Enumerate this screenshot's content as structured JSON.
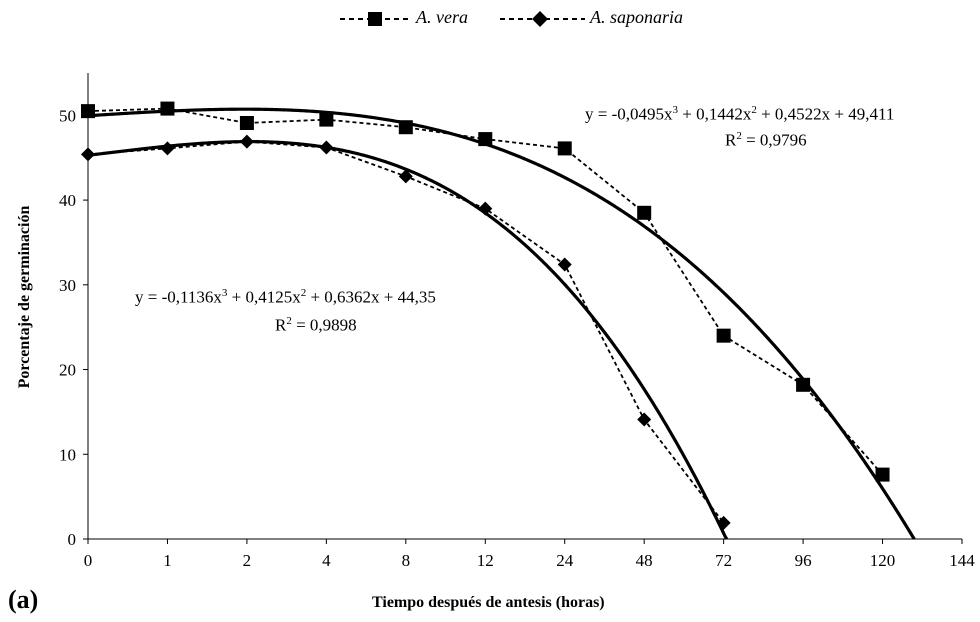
{
  "chart_data": {
    "type": "line",
    "xlabel": "Tiempo después de antesis (horas)",
    "ylabel": "Porcentaje de germinación",
    "panel_label": "(a)",
    "categories": [
      "0",
      "1",
      "2",
      "4",
      "8",
      "12",
      "24",
      "48",
      "72",
      "96",
      "120",
      "144"
    ],
    "ylim": [
      0,
      55
    ],
    "yticks": [
      0,
      10,
      20,
      30,
      40,
      50
    ],
    "grid": false,
    "legend_position": "top-center",
    "series": [
      {
        "name": "A. vera",
        "marker": "square",
        "line_style": "dashed",
        "values": [
          50.5,
          50.8,
          49.1,
          49.5,
          48.6,
          47.2,
          46.1,
          38.5,
          24.0,
          18.2,
          7.6,
          null
        ],
        "fit": {
          "coefficients": [
            -0.0495,
            0.1442,
            0.4522,
            49.411
          ],
          "equation": "y = -0,0495x",
          "equation_rest": " + 0,1442x",
          "equation_rest2": " + 0,4522x + 49,411",
          "r2_label": "R",
          "r2_value": " = 0,9796"
        }
      },
      {
        "name": "A. saponaria",
        "marker": "diamond",
        "line_style": "dashed",
        "values": [
          45.4,
          46.1,
          46.9,
          46.2,
          42.8,
          39.0,
          32.4,
          14.1,
          1.9,
          null,
          null,
          null
        ],
        "fit": {
          "coefficients": [
            -0.1136,
            0.4125,
            0.6362,
            44.35
          ],
          "equation": "y = -0,1136x",
          "equation_rest": " + 0,4125x",
          "equation_rest2": " + 0,6362x + 44,35",
          "r2_label": "R",
          "r2_value": " = 0,9898"
        }
      }
    ]
  },
  "superscripts": {
    "cube": "3",
    "square": "2"
  }
}
